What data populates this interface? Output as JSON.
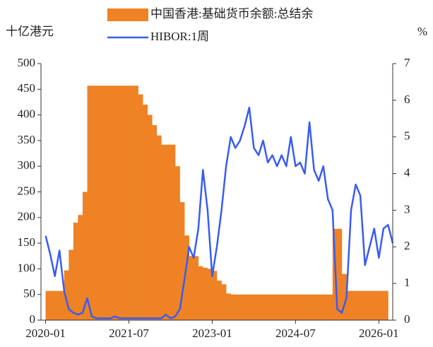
{
  "chart_data": {
    "type": "combo",
    "y_label": "十亿港元",
    "y2_label": "%",
    "x": [
      "2020-01",
      "2020-02",
      "2020-03",
      "2020-04",
      "2020-05",
      "2020-06",
      "2020-07",
      "2020-08",
      "2020-09",
      "2020-10",
      "2020-11",
      "2020-12",
      "2021-01",
      "2021-02",
      "2021-03",
      "2021-04",
      "2021-05",
      "2021-06",
      "2021-07",
      "2021-08",
      "2021-09",
      "2021-10",
      "2021-11",
      "2021-12",
      "2022-01",
      "2022-02",
      "2022-03",
      "2022-04",
      "2022-05",
      "2022-06",
      "2022-07",
      "2022-08",
      "2022-09",
      "2022-10",
      "2022-11",
      "2022-12",
      "2023-01",
      "2023-02",
      "2023-03",
      "2023-04",
      "2023-05",
      "2023-06",
      "2023-07",
      "2023-08",
      "2023-09",
      "2023-10",
      "2023-11",
      "2023-12",
      "2024-01",
      "2024-02",
      "2024-03",
      "2024-04",
      "2024-05",
      "2024-06",
      "2024-07",
      "2024-08",
      "2024-09",
      "2024-10",
      "2024-11",
      "2024-12",
      "2025-01",
      "2025-02",
      "2025-03",
      "2025-04",
      "2025-05",
      "2025-06",
      "2025-07",
      "2025-08",
      "2025-09",
      "2025-10",
      "2025-11",
      "2025-12",
      "2026-01",
      "2026-02",
      "2026-03",
      "2026-04"
    ],
    "series": [
      {
        "name": "中国香港:基础货币余额:总结余",
        "kind": "bar",
        "color": "#ee8224",
        "axis": "y",
        "values": [
          57,
          57,
          57,
          57,
          97,
          137,
          190,
          205,
          250,
          457,
          457,
          457,
          457,
          457,
          457,
          457,
          457,
          457,
          457,
          457,
          440,
          420,
          400,
          380,
          360,
          342,
          342,
          342,
          300,
          230,
          165,
          125,
          125,
          105,
          102,
          100,
          96,
          77,
          70,
          52,
          50,
          50,
          50,
          50,
          50,
          50,
          50,
          50,
          50,
          50,
          50,
          50,
          50,
          50,
          50,
          50,
          50,
          50,
          50,
          50,
          50,
          50,
          178,
          178,
          90,
          57,
          57,
          57,
          57,
          57,
          57,
          57,
          57,
          57,
          null,
          null
        ]
      },
      {
        "name": "HIBOR:1周",
        "kind": "line",
        "color": "#3a5cf0",
        "axis": "y2",
        "values": [
          2.3,
          1.8,
          1.2,
          1.9,
          0.8,
          0.3,
          0.2,
          0.15,
          0.2,
          0.6,
          0.1,
          0.05,
          0.05,
          0.05,
          0.05,
          0.1,
          0.05,
          0.05,
          0.05,
          0.05,
          0.05,
          0.05,
          0.05,
          0.05,
          0.05,
          0.05,
          0.15,
          0.05,
          0.1,
          0.3,
          1.1,
          2.0,
          1.7,
          2.5,
          4.1,
          3.0,
          1.2,
          2.0,
          3.0,
          4.2,
          5.0,
          4.7,
          4.9,
          5.3,
          5.8,
          4.7,
          4.5,
          4.9,
          4.3,
          4.5,
          4.2,
          4.5,
          4.2,
          5.0,
          4.2,
          4.3,
          4.0,
          5.4,
          4.1,
          3.8,
          4.2,
          3.3,
          3.0,
          0.3,
          0.2,
          0.6,
          3.0,
          3.7,
          3.4,
          1.5,
          2.0,
          2.5,
          1.7,
          2.5,
          2.6,
          2.1
        ]
      }
    ],
    "xlim": [
      "2019-12",
      "2026-04"
    ],
    "xticks": [
      "2020-01",
      "2021-07",
      "2023-01",
      "2024-07",
      "2026-01"
    ],
    "ylim": [
      0,
      500
    ],
    "yticks": [
      0,
      50,
      100,
      150,
      200,
      250,
      300,
      350,
      400,
      450,
      500
    ],
    "y2lim": [
      0,
      7
    ],
    "y2ticks": [
      0,
      1,
      2,
      3,
      4,
      5,
      6,
      7
    ],
    "legend": "top"
  }
}
